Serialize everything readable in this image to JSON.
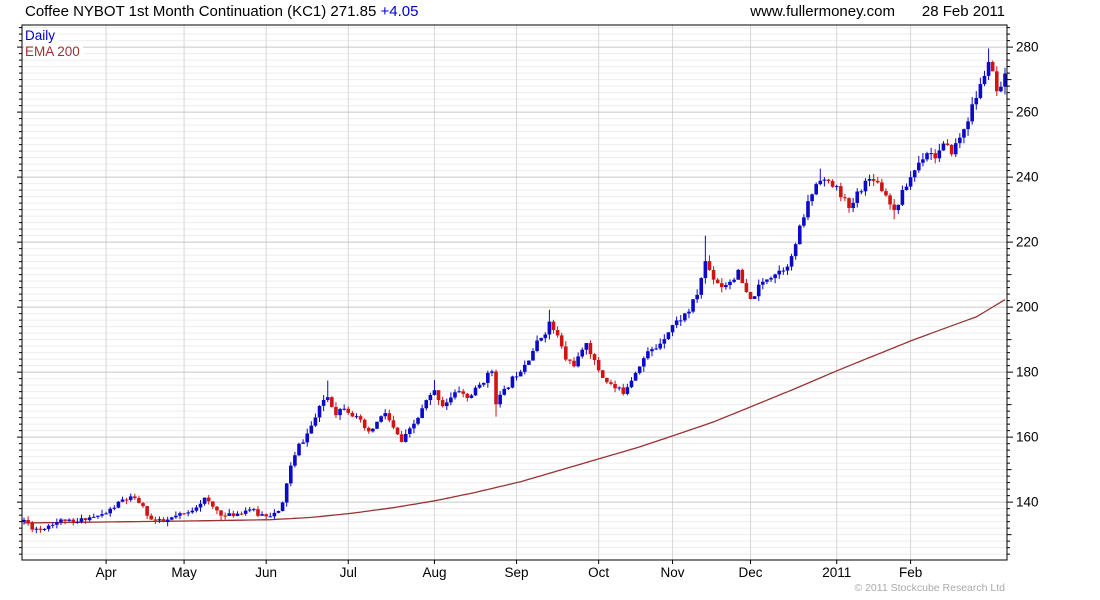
{
  "header": {
    "title": "Coffee NYBOT 1st Month Continuation (KC1) 271.85",
    "change": "+4.05",
    "website": "www.fullermoney.com",
    "date": "28 Feb 2011"
  },
  "legend": {
    "series1": "Daily",
    "series2": "EMA 200"
  },
  "footer": {
    "copyright": "© 2011 Stockcube Research Ltd"
  },
  "colors": {
    "up_candle": "#0a0ac8",
    "down_candle": "#d01414",
    "ema_line": "#993333",
    "change_text": "#0000cc",
    "major_grid": "#c6c6c6",
    "minor_grid": "#ededed",
    "month_grid": "#d8d8d8",
    "frame": "#000000",
    "copyright_text": "#aaaaaa"
  },
  "chart_data": {
    "type": "candlestick",
    "title": "Coffee NYBOT 1st Month Continuation (KC1) 271.85 +4.05",
    "subtitle": "Daily candles with 200-day EMA, Mar 2010 - 28 Feb 2011",
    "legend_entries": [
      "Daily",
      "EMA 200"
    ],
    "legend_position": "top-left",
    "grid": "on",
    "xlabel": "",
    "ylabel": "",
    "last_price": 271.85,
    "last_change": 4.05,
    "days": 240,
    "ylim": [
      122.2,
      286.8
    ],
    "y_major_ticks": [
      280,
      260,
      240,
      220,
      200,
      180,
      160,
      140
    ],
    "y_minor_step": 2,
    "x_ticks": [
      {
        "label": "Apr",
        "day": 20
      },
      {
        "label": "May",
        "day": 39
      },
      {
        "label": "Jun",
        "day": 59
      },
      {
        "label": "Jul",
        "day": 79
      },
      {
        "label": "Aug",
        "day": 100
      },
      {
        "label": "Sep",
        "day": 120
      },
      {
        "label": "Oct",
        "day": 140
      },
      {
        "label": "Nov",
        "day": 158
      },
      {
        "label": "Dec",
        "day": 177
      },
      {
        "label": "2011",
        "day": 198
      },
      {
        "label": "Feb",
        "day": 216
      }
    ],
    "close_anchors": [
      [
        0,
        134.5
      ],
      [
        2,
        132.2
      ],
      [
        4,
        131.6
      ],
      [
        7,
        133.6
      ],
      [
        10,
        134.6
      ],
      [
        12,
        133.2
      ],
      [
        15,
        135.2
      ],
      [
        18,
        135.6
      ],
      [
        20,
        136.6
      ],
      [
        22,
        138.6
      ],
      [
        24,
        140.6
      ],
      [
        26,
        141.2
      ],
      [
        28,
        140
      ],
      [
        31,
        134.6
      ],
      [
        34,
        133.8
      ],
      [
        37,
        135.6
      ],
      [
        40,
        136.6
      ],
      [
        42,
        139
      ],
      [
        44,
        141
      ],
      [
        46,
        138.4
      ],
      [
        49,
        135.6
      ],
      [
        52,
        136.6
      ],
      [
        55,
        138
      ],
      [
        57,
        136.2
      ],
      [
        60,
        136.2
      ],
      [
        62,
        136.8
      ],
      [
        63,
        139.5
      ],
      [
        64,
        146
      ],
      [
        65,
        151
      ],
      [
        66,
        154
      ],
      [
        67,
        157.5
      ],
      [
        68,
        159
      ],
      [
        69,
        161
      ],
      [
        71,
        166
      ],
      [
        73,
        171.5
      ],
      [
        74,
        172.5
      ],
      [
        76,
        167.5
      ],
      [
        78,
        169.5
      ],
      [
        80,
        167
      ],
      [
        82,
        164.5
      ],
      [
        84,
        161
      ],
      [
        86,
        164.5
      ],
      [
        88,
        167.5
      ],
      [
        90,
        162.5
      ],
      [
        92,
        158.5
      ],
      [
        94,
        162
      ],
      [
        96,
        166
      ],
      [
        98,
        171
      ],
      [
        100,
        174
      ],
      [
        102,
        170
      ],
      [
        104,
        172
      ],
      [
        106,
        174.5
      ],
      [
        108,
        172
      ],
      [
        110,
        174.5
      ],
      [
        112,
        177.5
      ],
      [
        114,
        180.5
      ],
      [
        115,
        171
      ],
      [
        117,
        174
      ],
      [
        119,
        178
      ],
      [
        121,
        181
      ],
      [
        123,
        184.5
      ],
      [
        125,
        189
      ],
      [
        127,
        192.5
      ],
      [
        128,
        195
      ],
      [
        130,
        191
      ],
      [
        132,
        184
      ],
      [
        134,
        182.5
      ],
      [
        136,
        186
      ],
      [
        137,
        189.5
      ],
      [
        139,
        183
      ],
      [
        141,
        178.5
      ],
      [
        144,
        175
      ],
      [
        146,
        174
      ],
      [
        148,
        178
      ],
      [
        150,
        182.5
      ],
      [
        152,
        186
      ],
      [
        154,
        187.5
      ],
      [
        156,
        191
      ],
      [
        158,
        194.5
      ],
      [
        160,
        196.5
      ],
      [
        162,
        199
      ],
      [
        164,
        204
      ],
      [
        166,
        214
      ],
      [
        168,
        209
      ],
      [
        170,
        206.5
      ],
      [
        172,
        208
      ],
      [
        174,
        210.5
      ],
      [
        176,
        204
      ],
      [
        177,
        202
      ],
      [
        179,
        206
      ],
      [
        181,
        209
      ],
      [
        183,
        210.5
      ],
      [
        185,
        212
      ],
      [
        187,
        215
      ],
      [
        189,
        224
      ],
      [
        191,
        232
      ],
      [
        193,
        238
      ],
      [
        194,
        240
      ],
      [
        196,
        238
      ],
      [
        198,
        236.5
      ],
      [
        200,
        233
      ],
      [
        201,
        229.5
      ],
      [
        203,
        235
      ],
      [
        205,
        238.5
      ],
      [
        207,
        240
      ],
      [
        209,
        236.5
      ],
      [
        211,
        232.5
      ],
      [
        212,
        229.5
      ],
      [
        214,
        235
      ],
      [
        216,
        240
      ],
      [
        218,
        244.5
      ],
      [
        220,
        248
      ],
      [
        222,
        246.5
      ],
      [
        224,
        249.5
      ],
      [
        226,
        248
      ],
      [
        228,
        252
      ],
      [
        230,
        258
      ],
      [
        231,
        261.5
      ],
      [
        233,
        268
      ],
      [
        235,
        275.5
      ],
      [
        236,
        271.5
      ],
      [
        237,
        266
      ],
      [
        238,
        267.8
      ],
      [
        239,
        271.85
      ]
    ],
    "ema_anchors": [
      [
        0,
        133.6
      ],
      [
        20,
        133.9
      ],
      [
        40,
        134.2
      ],
      [
        60,
        134.6
      ],
      [
        70,
        135.3
      ],
      [
        80,
        136.6
      ],
      [
        90,
        138.3
      ],
      [
        100,
        140.4
      ],
      [
        110,
        143
      ],
      [
        121,
        146.3
      ],
      [
        130,
        149.6
      ],
      [
        140,
        153.3
      ],
      [
        150,
        157
      ],
      [
        159,
        160.8
      ],
      [
        168,
        164.7
      ],
      [
        177,
        169.3
      ],
      [
        188,
        175
      ],
      [
        198,
        180.4
      ],
      [
        207,
        185
      ],
      [
        216,
        189.6
      ],
      [
        225,
        193.8
      ],
      [
        232,
        197
      ],
      [
        239,
        202.3
      ]
    ],
    "pinned": {
      "74": {
        "h": 177.4
      },
      "100": {
        "h": 177.6
      },
      "115": {
        "l": 166.3
      },
      "128": {
        "h": 199.2
      },
      "166": {
        "h": 222.0
      },
      "194": {
        "h": 242.6
      },
      "212": {
        "l": 227.0
      },
      "235": {
        "h": 279.6
      },
      "238": {
        "c": 267.8
      },
      "239": {
        "o": 267.8,
        "h": 273.6,
        "l": 265.4,
        "c": 271.85
      }
    },
    "seed": 11
  }
}
